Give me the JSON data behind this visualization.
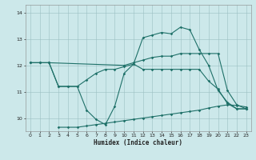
{
  "xlabel": "Humidex (Indice chaleur)",
  "background_color": "#cce8ea",
  "grid_color": "#9bbfc2",
  "line_color": "#1e7068",
  "xlim": [
    -0.5,
    23.5
  ],
  "ylim": [
    9.5,
    14.3
  ],
  "yticks": [
    10,
    11,
    12,
    13,
    14
  ],
  "xticks": [
    0,
    1,
    2,
    3,
    4,
    5,
    6,
    7,
    8,
    9,
    10,
    11,
    12,
    13,
    14,
    15,
    16,
    17,
    18,
    19,
    20,
    21,
    22,
    23
  ],
  "curve1_x": [
    0,
    1,
    2,
    3,
    4,
    5,
    6,
    7,
    8,
    9,
    10,
    11,
    12,
    13,
    14,
    15,
    16,
    17,
    18,
    19,
    20,
    21,
    22,
    23
  ],
  "curve1_y": [
    12.1,
    12.1,
    12.1,
    11.2,
    11.2,
    11.2,
    11.45,
    11.7,
    11.85,
    11.85,
    11.95,
    12.05,
    11.85,
    11.85,
    11.85,
    11.85,
    11.85,
    11.85,
    11.85,
    11.4,
    11.1,
    10.55,
    10.35,
    10.35
  ],
  "curve2_x": [
    0,
    1,
    2,
    3,
    4,
    5,
    6,
    7,
    8,
    9,
    10,
    11,
    12,
    13,
    14,
    15,
    16,
    17,
    18,
    19,
    20,
    21,
    22,
    23
  ],
  "curve2_y": [
    12.1,
    12.1,
    12.1,
    11.2,
    11.2,
    11.2,
    10.3,
    9.95,
    9.75,
    10.45,
    11.7,
    12.05,
    13.05,
    13.15,
    13.25,
    13.2,
    13.45,
    13.35,
    12.6,
    12.0,
    11.05,
    10.6,
    10.35,
    10.35
  ],
  "curve3_x": [
    0,
    1,
    2,
    10,
    11,
    12,
    13,
    14,
    15,
    16,
    17,
    18,
    19,
    20,
    21,
    22,
    23
  ],
  "curve3_y": [
    12.1,
    12.1,
    12.1,
    12.0,
    12.1,
    12.2,
    12.3,
    12.35,
    12.35,
    12.45,
    12.45,
    12.45,
    12.45,
    12.45,
    11.05,
    10.5,
    10.35
  ],
  "curve4_x": [
    3,
    4,
    5,
    6,
    7,
    8,
    9,
    10,
    11,
    12,
    13,
    14,
    15,
    16,
    17,
    18,
    19,
    20,
    21,
    22,
    23
  ],
  "curve4_y": [
    9.65,
    9.65,
    9.65,
    9.7,
    9.75,
    9.8,
    9.85,
    9.9,
    9.95,
    10.0,
    10.05,
    10.1,
    10.15,
    10.2,
    10.25,
    10.3,
    10.38,
    10.45,
    10.5,
    10.48,
    10.42
  ]
}
